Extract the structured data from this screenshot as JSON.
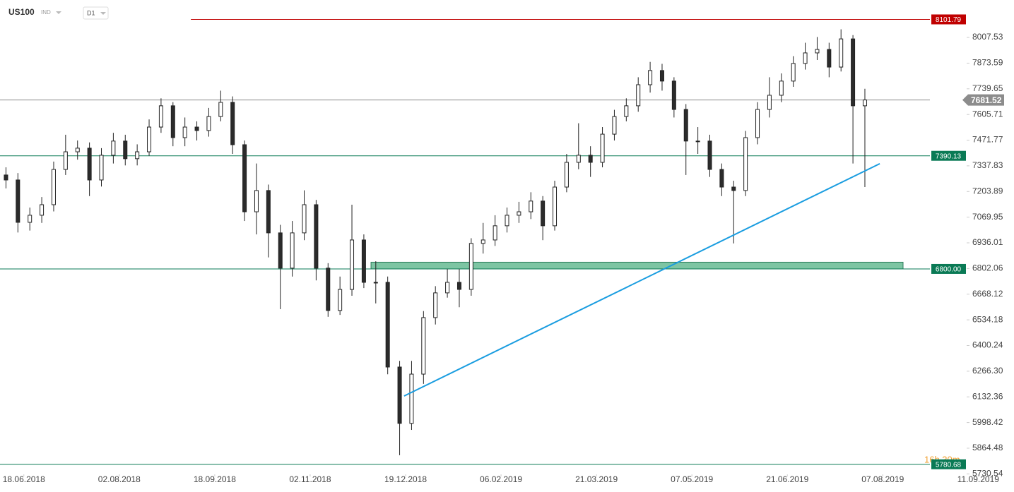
{
  "chart_data": {
    "type": "candlestick",
    "symbol": "US100",
    "market": "IND",
    "interval": "D1",
    "countdown": "16h 30m",
    "x": [
      -6,
      -2,
      2,
      6,
      10,
      14,
      18,
      22,
      26,
      30,
      34,
      38,
      42,
      46,
      50,
      54,
      58,
      62,
      66,
      70,
      74,
      78,
      82,
      86,
      90,
      94,
      98,
      102,
      106,
      110,
      114,
      118,
      122,
      126,
      130,
      134,
      138,
      142,
      146,
      150,
      154,
      158,
      162,
      166,
      170,
      174,
      178,
      182,
      186,
      190,
      194,
      198,
      202,
      206,
      210,
      214,
      218,
      222,
      226,
      230,
      234,
      238,
      242,
      246,
      250,
      254,
      258,
      262,
      266,
      270,
      274,
      278,
      282
    ],
    "open": [
      7290,
      7264,
      7043,
      7080,
      7135,
      7319,
      7411,
      7430,
      7264,
      7393,
      7467,
      7375,
      7411,
      7540,
      7651,
      7485,
      7540,
      7522,
      7595,
      7669,
      7448,
      7098,
      7209,
      6988,
      6804,
      6988,
      7135,
      6804,
      6583,
      6693,
      6951,
      6730,
      6730,
      6288,
      5994,
      6251,
      6546,
      6675,
      6730,
      6693,
      6933,
      6951,
      7025,
      7080,
      7098,
      7154,
      7025,
      7227,
      7356,
      7393,
      7356,
      7503,
      7595,
      7651,
      7761,
      7835,
      7780,
      7632,
      7467,
      7467,
      7319,
      7227,
      7209,
      7485,
      7632,
      7706,
      7780,
      7872,
      7927,
      7945,
      7853,
      8000,
      7651
    ],
    "high": [
      7330,
      7300,
      7120,
      7175,
      7360,
      7500,
      7470,
      7460,
      7430,
      7510,
      7500,
      7450,
      7580,
      7690,
      7670,
      7590,
      7570,
      7640,
      7730,
      7700,
      7470,
      7350,
      7240,
      7030,
      7050,
      7210,
      7160,
      6830,
      6760,
      7135,
      6980,
      6840,
      6760,
      6320,
      6320,
      6580,
      6710,
      6800,
      6800,
      6960,
      7040,
      7080,
      7120,
      7150,
      7200,
      7180,
      7260,
      7400,
      7560,
      7440,
      7540,
      7630,
      7690,
      7800,
      7880,
      7870,
      7800,
      7660,
      7540,
      7500,
      7350,
      7260,
      7520,
      7670,
      7800,
      7820,
      7910,
      7980,
      8010,
      7980,
      8050,
      8020,
      7740
    ],
    "low": [
      7220,
      6990,
      7000,
      7040,
      7100,
      7290,
      7370,
      7180,
      7230,
      7350,
      7340,
      7340,
      7390,
      7510,
      7440,
      7440,
      7470,
      7490,
      7570,
      7400,
      7050,
      6980,
      6860,
      6590,
      6760,
      6950,
      6740,
      6550,
      6560,
      6660,
      6700,
      6620,
      6250,
      5828,
      5960,
      6200,
      6510,
      6650,
      6600,
      6660,
      6880,
      6920,
      6990,
      7040,
      7060,
      6950,
      7000,
      7200,
      7320,
      7280,
      7330,
      7470,
      7570,
      7620,
      7720,
      7730,
      7590,
      7290,
      7400,
      7280,
      7180,
      6933,
      7180,
      7450,
      7590,
      7670,
      7750,
      7840,
      7890,
      7800,
      7830,
      7350,
      7227
    ],
    "close": [
      7264,
      7043,
      7080,
      7135,
      7319,
      7411,
      7430,
      7264,
      7393,
      7467,
      7375,
      7411,
      7540,
      7651,
      7485,
      7540,
      7522,
      7595,
      7669,
      7448,
      7098,
      7209,
      6988,
      6804,
      6988,
      7135,
      6804,
      6583,
      6693,
      6951,
      6730,
      6730,
      6288,
      5994,
      6251,
      6546,
      6675,
      6730,
      6693,
      6933,
      6951,
      7025,
      7080,
      7098,
      7154,
      7025,
      7227,
      7356,
      7393,
      7356,
      7503,
      7595,
      7651,
      7761,
      7835,
      7780,
      7632,
      7467,
      7467,
      7319,
      7227,
      7209,
      7485,
      7632,
      7706,
      7780,
      7872,
      7927,
      7945,
      7853,
      8000,
      7651,
      7681.52
    ],
    "up_color": "#ffffff",
    "down_color": "#2b2b2b",
    "xlim": [
      -8,
      332
    ],
    "xticks": [
      {
        "value": 0,
        "label": "18.06.2018"
      },
      {
        "value": 32,
        "label": "02.08.2018"
      },
      {
        "value": 64,
        "label": "18.09.2018"
      },
      {
        "value": 96,
        "label": "02.11.2018"
      },
      {
        "value": 128,
        "label": "19.12.2018"
      },
      {
        "value": 160,
        "label": "06.02.2019"
      },
      {
        "value": 192,
        "label": "21.03.2019"
      },
      {
        "value": 224,
        "label": "07.05.2019"
      },
      {
        "value": 256,
        "label": "21.06.2019"
      },
      {
        "value": 288,
        "label": "07.08.2019"
      },
      {
        "value": 320,
        "label": "11.09.2019"
      }
    ],
    "ylim": [
      5636,
      8203
    ],
    "yticks": [
      8007.53,
      7873.59,
      7739.65,
      7605.71,
      7471.77,
      7337.83,
      7203.89,
      7069.95,
      6936.01,
      6802.06,
      6668.12,
      6534.18,
      6400.24,
      {
        "value": 6266.3,
        "label": "6266.30"
      },
      6132.36,
      5998.42,
      5864.48,
      5730.54
    ],
    "levels": [
      {
        "value": 8101.79,
        "color": "#c00000",
        "from_x": 56
      },
      {
        "value": 7681.52,
        "color": "#8c8c8c",
        "current": true
      },
      {
        "value": 7390.13,
        "color": "#0a7a55"
      },
      {
        "value": 6800,
        "label": "6800.00",
        "color": "#0a7a55"
      },
      {
        "value": 5780.68,
        "color": "#0a7a55"
      }
    ],
    "zone": {
      "x": [
        116.4,
        294.8
      ],
      "y": [
        6800,
        6835
      ],
      "color": "#66bb93"
    },
    "trendline": {
      "x": [
        127.5,
        287
      ],
      "y": [
        6137,
        7349
      ],
      "color": "#1a9de0"
    }
  }
}
